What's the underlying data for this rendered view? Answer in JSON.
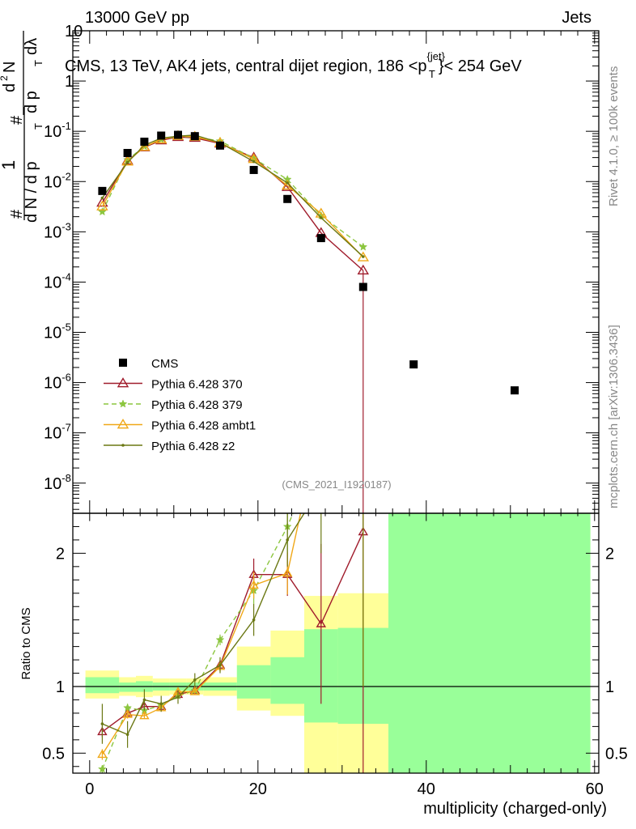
{
  "header": {
    "left": "13000 GeV pp",
    "right": "Jets"
  },
  "side_labels": {
    "rivet": "Rivet 4.1.0, ≥ 100k events",
    "mcplots": "mcplots.cern.ch [arXiv:1306.3436]"
  },
  "chart_data": {
    "type": "scatter",
    "title": "CMS, 13 TeV, AK4 jets, central dijet region, 186 <p",
    "title_sup": "{jet}",
    "title_sub": "T",
    "title_end": "}< 254 GeV",
    "watermark": "(CMS_2021_I1920187)",
    "ylabel_parts": [
      "#",
      "1",
      "d N / d p",
      "T",
      "#",
      "d",
      "2",
      "N",
      "d p",
      "T",
      "dλ"
    ],
    "xlabel": "multiplicity (charged-only)",
    "ratio_ylabel": "Ratio to CMS",
    "xlim": [
      -2,
      60.5
    ],
    "ylim_main_log": [
      -8.6,
      1
    ],
    "ylim_ratio": [
      0.35,
      2.3
    ],
    "x_ticks": [
      0,
      20,
      40,
      60
    ],
    "x_tick_labels": [
      "0",
      "20",
      "40",
      "60"
    ],
    "y_ticks_main": [
      {
        "exp": -8,
        "label": "10",
        "sup": "-8"
      },
      {
        "exp": -7,
        "label": "10",
        "sup": "-7"
      },
      {
        "exp": -6,
        "label": "10",
        "sup": "-6"
      },
      {
        "exp": -5,
        "label": "10",
        "sup": "-5"
      },
      {
        "exp": -4,
        "label": "10",
        "sup": "-4"
      },
      {
        "exp": -3,
        "label": "10",
        "sup": "-3"
      },
      {
        "exp": -2,
        "label": "10",
        "sup": "-2"
      },
      {
        "exp": -1,
        "label": "10",
        "sup": "-1"
      },
      {
        "exp": 0,
        "label": "1",
        "sup": ""
      },
      {
        "exp": 1,
        "label": "10",
        "sup": ""
      }
    ],
    "y_ticks_ratio": [
      {
        "v": 0.5,
        "label": "0.5"
      },
      {
        "v": 1,
        "label": "1"
      },
      {
        "v": 2,
        "label": "2"
      }
    ],
    "data": {
      "name": "CMS",
      "x": [
        1.5,
        4.5,
        6.5,
        8.5,
        10.5,
        12.5,
        15.5,
        19.5,
        23.5,
        27.5,
        32.5,
        38.5,
        50.5
      ],
      "y": [
        0.0065,
        0.037,
        0.062,
        0.082,
        0.085,
        0.08,
        0.052,
        0.017,
        0.0045,
        0.00075,
        8e-05,
        2.3e-06,
        7e-07
      ]
    },
    "series": [
      {
        "name": "Pythia 6.428 370",
        "color": "#a01c2c",
        "dash": "",
        "marker": "triangle-open",
        "x": [
          1.5,
          4.5,
          6.5,
          8.5,
          10.5,
          12.5,
          15.5,
          19.5,
          23.5,
          27.5,
          32.5
        ],
        "y": [
          0.0038,
          0.026,
          0.048,
          0.066,
          0.077,
          0.074,
          0.057,
          0.03,
          0.0078,
          0.00095,
          0.00017
        ],
        "ratio": [
          0.66,
          0.8,
          0.85,
          0.85,
          0.94,
          0.97,
          1.16,
          1.84,
          1.84,
          1.47,
          2.16
        ],
        "ratio_err": [
          0.04,
          0.03,
          0.02,
          0.02,
          0.02,
          0.02,
          0.04,
          0.12,
          0.16,
          0.6,
          2.5
        ]
      },
      {
        "name": "Pythia 6.428 379",
        "color": "#8cc63f",
        "dash": "6,4",
        "marker": "star",
        "x": [
          1.5,
          4.5,
          6.5,
          8.5,
          10.5,
          12.5,
          15.5,
          19.5,
          23.5,
          27.5,
          32.5
        ],
        "y": [
          0.0025,
          0.027,
          0.05,
          0.069,
          0.079,
          0.077,
          0.064,
          0.029,
          0.011,
          0.0021,
          0.0005
        ],
        "ratio": [
          0.38,
          0.84,
          0.82,
          0.86,
          0.93,
          0.97,
          1.35,
          1.72,
          2.2,
          2.8,
          6.0
        ],
        "ratio_err": [
          0.03,
          0.03,
          0.02,
          0.02,
          0.02,
          0.02,
          0.04,
          0.1,
          0.2,
          0.5,
          3
        ]
      },
      {
        "name": "Pythia 6.428 ambt1",
        "color": "#f0a818",
        "dash": "",
        "marker": "triangle-open",
        "x": [
          1.5,
          4.5,
          6.5,
          8.5,
          10.5,
          12.5,
          15.5,
          19.5,
          23.5,
          27.5,
          32.5
        ],
        "y": [
          0.0032,
          0.025,
          0.049,
          0.069,
          0.081,
          0.078,
          0.059,
          0.028,
          0.0083,
          0.0023,
          0.00031
        ],
        "ratio": [
          0.49,
          0.79,
          0.78,
          0.84,
          0.96,
          0.96,
          1.15,
          1.76,
          1.85,
          3.0,
          4.0
        ],
        "ratio_err": [
          0.04,
          0.03,
          0.02,
          0.02,
          0.02,
          0.02,
          0.04,
          0.1,
          0.16,
          0.6,
          3
        ]
      },
      {
        "name": "Pythia 6.428 z2",
        "color": "#6b7814",
        "dash": "",
        "marker": "dot",
        "x": [
          1.5,
          4.5,
          6.5,
          8.5,
          10.5,
          12.5,
          15.5,
          19.5,
          23.5,
          27.5,
          32.5
        ],
        "y": [
          0.0047,
          0.024,
          0.053,
          0.073,
          0.08,
          0.084,
          0.059,
          0.025,
          0.0094,
          0.0019,
          0.00032
        ],
        "ratio": [
          0.72,
          0.64,
          0.9,
          0.87,
          0.92,
          1.05,
          1.16,
          1.5,
          2.1,
          2.5,
          4.0
        ],
        "ratio_err": [
          0.15,
          0.1,
          0.08,
          0.06,
          0.05,
          0.05,
          0.06,
          0.12,
          0.2,
          0.5,
          3
        ]
      }
    ],
    "bands_yellow": [
      {
        "x0": -0.5,
        "x1": 3.5,
        "lo": 0.91,
        "hi": 1.12
      },
      {
        "x0": 3.5,
        "x1": 5.5,
        "lo": 0.93,
        "hi": 1.07
      },
      {
        "x0": 5.5,
        "x1": 7.5,
        "lo": 0.92,
        "hi": 1.08
      },
      {
        "x0": 7.5,
        "x1": 9.5,
        "lo": 0.93,
        "hi": 1.06
      },
      {
        "x0": 9.5,
        "x1": 11.5,
        "lo": 0.94,
        "hi": 1.06
      },
      {
        "x0": 11.5,
        "x1": 13.5,
        "lo": 0.94,
        "hi": 1.06
      },
      {
        "x0": 13.5,
        "x1": 17.5,
        "lo": 0.93,
        "hi": 1.07
      },
      {
        "x0": 17.5,
        "x1": 21.5,
        "lo": 0.82,
        "hi": 1.3
      },
      {
        "x0": 21.5,
        "x1": 25.5,
        "lo": 0.78,
        "hi": 1.42
      },
      {
        "x0": 25.5,
        "x1": 29.5,
        "lo": 0.27,
        "hi": 1.68
      },
      {
        "x0": 29.5,
        "x1": 35.5,
        "lo": 0.0,
        "hi": 1.7
      },
      {
        "x0": 35.5,
        "x1": 41.5,
        "lo": 0.0,
        "hi": 3.0
      },
      {
        "x0": 41.5,
        "x1": 59.5,
        "lo": 0.0,
        "hi": 2.2
      }
    ],
    "bands_green": [
      {
        "x0": -0.5,
        "x1": 3.5,
        "lo": 0.95,
        "hi": 1.07
      },
      {
        "x0": 3.5,
        "x1": 5.5,
        "lo": 0.96,
        "hi": 1.03
      },
      {
        "x0": 5.5,
        "x1": 7.5,
        "lo": 0.96,
        "hi": 1.04
      },
      {
        "x0": 7.5,
        "x1": 9.5,
        "lo": 0.97,
        "hi": 1.03
      },
      {
        "x0": 9.5,
        "x1": 11.5,
        "lo": 0.97,
        "hi": 1.03
      },
      {
        "x0": 11.5,
        "x1": 13.5,
        "lo": 0.97,
        "hi": 1.03
      },
      {
        "x0": 13.5,
        "x1": 17.5,
        "lo": 0.97,
        "hi": 1.03
      },
      {
        "x0": 17.5,
        "x1": 21.5,
        "lo": 0.91,
        "hi": 1.16
      },
      {
        "x0": 21.5,
        "x1": 25.5,
        "lo": 0.87,
        "hi": 1.22
      },
      {
        "x0": 25.5,
        "x1": 29.5,
        "lo": 0.73,
        "hi": 1.43
      },
      {
        "x0": 29.5,
        "x1": 35.5,
        "lo": 0.72,
        "hi": 1.44
      },
      {
        "x0": 35.5,
        "x1": 59.5,
        "lo": 0.0,
        "hi": 3.0
      }
    ]
  }
}
